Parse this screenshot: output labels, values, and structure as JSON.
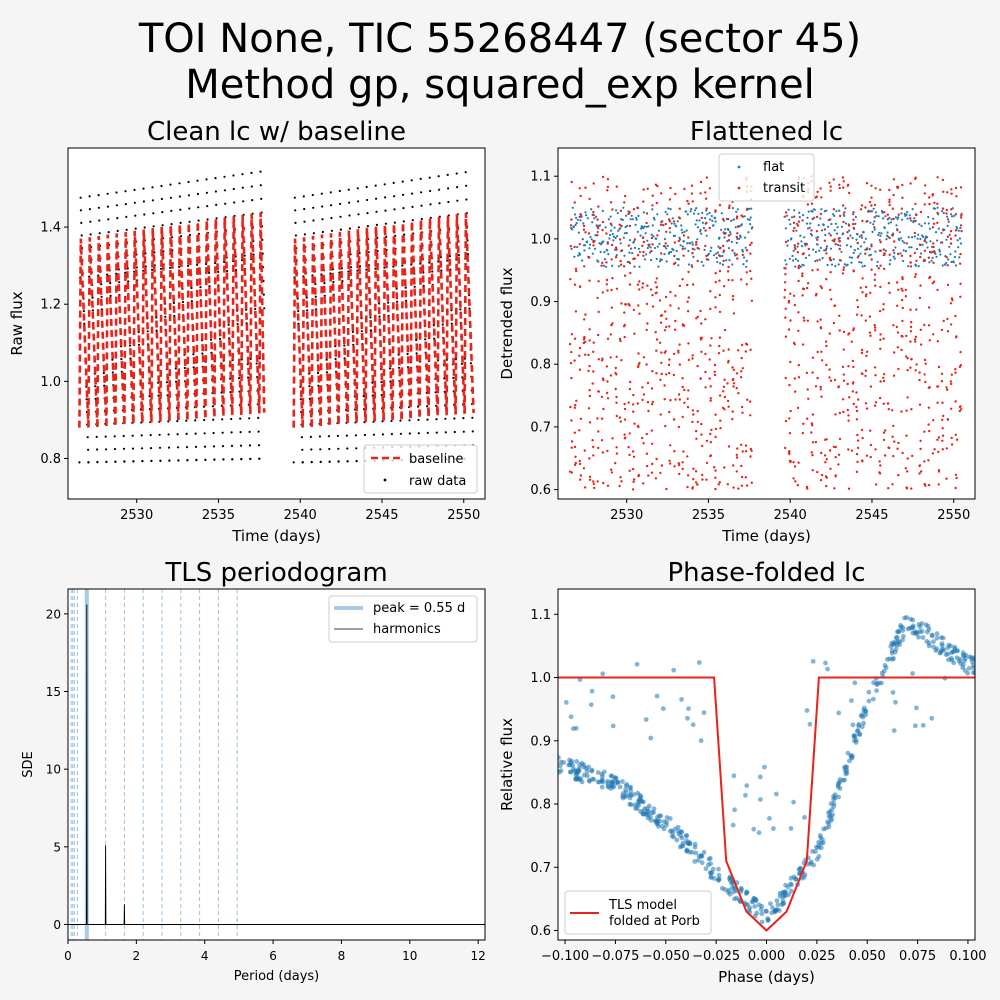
{
  "figure": {
    "title_line1": "TOI None, TIC 55268447 (sector 45)",
    "title_line2": "Method gp, squared_exp kernel",
    "background": "#f5f5f5"
  },
  "colors": {
    "red": "#e8241a",
    "blue": "#1f77b4",
    "light_blue": "#a6cbe3",
    "black": "#000000"
  },
  "chart_data": [
    {
      "id": "clean",
      "type": "scatter",
      "title": "Clean lc w/ baseline",
      "xlabel": "Time (days)",
      "ylabel": "Raw flux",
      "xlim": [
        2525.8,
        2551.3
      ],
      "ylim": [
        0.695,
        1.605
      ],
      "xticks": [
        2530,
        2535,
        2540,
        2545,
        2550
      ],
      "yticks": [
        0.8,
        1.0,
        1.2,
        1.4
      ],
      "ytick_labels": [
        "0.8",
        "1.0",
        "1.2",
        "1.4"
      ],
      "legend": {
        "position": "lower-right",
        "entries": [
          "baseline",
          "raw data"
        ]
      },
      "grid": false,
      "series": [
        {
          "name": "raw data",
          "style": "black dots",
          "segments": [
            [
              2526.5,
              2537.8
            ],
            [
              2539.6,
              2550.6
            ]
          ],
          "pulsation_period_days": 0.55,
          "max": [
            1.48,
            1.55
          ],
          "min": [
            0.79,
            0.8
          ]
        },
        {
          "name": "baseline",
          "style": "red dashed line",
          "segments": [
            [
              2526.5,
              2537.8
            ],
            [
              2539.6,
              2550.6
            ]
          ],
          "max": [
            1.37,
            1.44
          ],
          "min": [
            0.88,
            0.92
          ]
        }
      ]
    },
    {
      "id": "flat",
      "type": "scatter",
      "title": "Flattened lc",
      "xlabel": "Time (days)",
      "ylabel": "Detrended flux",
      "xlim": [
        2525.8,
        2551.3
      ],
      "ylim": [
        0.585,
        1.145
      ],
      "xticks": [
        2530,
        2535,
        2540,
        2545,
        2550
      ],
      "yticks": [
        0.6,
        0.7,
        0.8,
        0.9,
        1.0,
        1.1
      ],
      "ytick_labels": [
        "0.6",
        "0.7",
        "0.8",
        "0.9",
        "1.0",
        "1.1"
      ],
      "legend": {
        "position": "upper-center",
        "entries": [
          "flat",
          "transit"
        ]
      },
      "grid": false,
      "series": [
        {
          "name": "flat",
          "style": "blue dots",
          "range": [
            0.95,
            1.05
          ]
        },
        {
          "name": "transit",
          "style": "red dots",
          "range": [
            0.6,
            1.1
          ]
        }
      ]
    },
    {
      "id": "tls",
      "type": "line",
      "title": "TLS periodogram",
      "xlabel": "Period (days)",
      "ylabel": "SDE",
      "xlim": [
        0,
        12.2
      ],
      "ylim": [
        -1.0,
        21.6
      ],
      "xticks": [
        0,
        2,
        4,
        6,
        8,
        10,
        12
      ],
      "yticks": [
        0,
        5,
        10,
        15,
        20
      ],
      "legend": {
        "position": "upper-right",
        "entries": [
          "peak = 0.55 d",
          "harmonics"
        ]
      },
      "grid": false,
      "peak_period": 0.55,
      "harmonic_periods": [
        0.0917,
        0.1375,
        0.1833,
        0.275,
        1.1,
        1.65,
        2.2,
        2.75,
        3.3,
        3.85,
        4.4,
        4.95
      ],
      "series": [
        {
          "name": "SDE",
          "x": [
            0.0,
            0.54,
            0.55,
            0.56,
            1.09,
            1.1,
            1.11,
            1.64,
            1.65,
            1.66,
            12.2
          ],
          "y": [
            0,
            0,
            20.6,
            0,
            0,
            5.1,
            0,
            0,
            1.3,
            0,
            0
          ]
        }
      ]
    },
    {
      "id": "fold",
      "type": "scatter",
      "title": "Phase-folded lc",
      "xlabel": "Phase (days)",
      "ylabel": "Relative flux",
      "xlim": [
        -0.1035,
        0.1035
      ],
      "ylim": [
        0.585,
        1.14
      ],
      "xticks": [
        -0.1,
        -0.075,
        -0.05,
        -0.025,
        0.0,
        0.025,
        0.05,
        0.075,
        0.1
      ],
      "xtick_labels": [
        "−0.100",
        "−0.075",
        "−0.050",
        "−0.025",
        "0.000",
        "0.025",
        "0.050",
        "0.075",
        "0.100"
      ],
      "yticks": [
        0.6,
        0.7,
        0.8,
        0.9,
        1.0,
        1.1
      ],
      "ytick_labels": [
        "0.6",
        "0.7",
        "0.8",
        "0.9",
        "1.0",
        "1.1"
      ],
      "legend": {
        "position": "lower-left",
        "entries": [
          "TLS model\nfolded at Porb"
        ]
      },
      "grid": false,
      "series": [
        {
          "name": "data",
          "style": "blue circles",
          "x": [
            -0.1,
            -0.075,
            -0.05,
            -0.025,
            0.0,
            0.025,
            0.05,
            0.07,
            0.1
          ],
          "y": [
            0.86,
            0.83,
            0.77,
            0.69,
            0.62,
            0.72,
            0.96,
            1.09,
            1.02
          ]
        },
        {
          "name": "TLS model folded at Porb",
          "style": "red line",
          "x": [
            -0.1035,
            -0.026,
            -0.02,
            -0.01,
            0.0,
            0.01,
            0.02,
            0.026,
            0.1035
          ],
          "y": [
            1.0,
            1.0,
            0.71,
            0.63,
            0.6,
            0.63,
            0.71,
            1.0,
            1.0
          ]
        }
      ]
    }
  ]
}
